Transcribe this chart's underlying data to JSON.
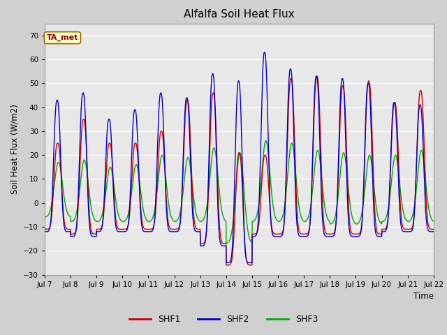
{
  "title": "Alfalfa Soil Heat Flux",
  "ylabel": "Soil Heat Flux (W/m2)",
  "xlabel": "Time",
  "ylim": [
    -30,
    75
  ],
  "yticks": [
    -30,
    -20,
    -10,
    0,
    10,
    20,
    30,
    40,
    50,
    60,
    70
  ],
  "plot_bg_color": "#e8e8e8",
  "fig_bg_color": "#d0d0d0",
  "grid_color": "#ffffff",
  "shf1_color": "#cc0000",
  "shf2_color": "#0000cc",
  "shf3_color": "#00aa00",
  "legend_label1": "SHF1",
  "legend_label2": "SHF2",
  "legend_label3": "SHF3",
  "annotation_text": "TA_met",
  "x_tick_labels": [
    "Jul 7",
    "Jul 8",
    "Jul 9",
    "Jul 10",
    "Jul 11",
    "Jul 12",
    "Jul 13",
    "Jul 14",
    "Jul 15",
    "Jul 16",
    "Jul 17",
    "Jul 18",
    "Jul 19",
    "Jul 20",
    "Jul 21",
    "Jul 22"
  ],
  "n_days": 15,
  "pts_per_day": 144,
  "shf2_peaks": [
    43,
    46,
    35,
    39,
    46,
    44,
    54,
    51,
    63,
    56,
    53,
    52,
    50,
    42,
    41
  ],
  "shf1_peaks": [
    25,
    35,
    25,
    25,
    30,
    43,
    46,
    21,
    20,
    52,
    53,
    49,
    51,
    42,
    47
  ],
  "shf3_peaks": [
    17,
    18,
    15,
    16,
    20,
    19,
    23,
    21,
    26,
    25,
    22,
    21,
    20,
    20,
    22
  ],
  "shf1_troughs": [
    -11,
    -13,
    -11,
    -11,
    -11,
    -11,
    -17,
    -26,
    -13,
    -13,
    -13,
    -13,
    -13,
    -11,
    -11
  ],
  "shf2_troughs": [
    -12,
    -14,
    -12,
    -12,
    -12,
    -12,
    -18,
    -25,
    -14,
    -14,
    -14,
    -14,
    -14,
    -12,
    -12
  ],
  "shf3_troughs": [
    -6,
    -8,
    -8,
    -8,
    -8,
    -8,
    -8,
    -17,
    -8,
    -8,
    -8,
    -9,
    -9,
    -8,
    -8
  ]
}
